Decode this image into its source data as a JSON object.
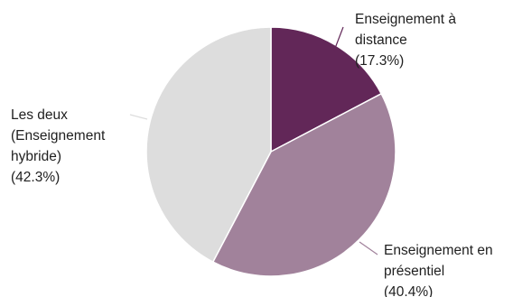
{
  "chart_data": {
    "type": "pie",
    "title": "",
    "slices": [
      {
        "label_lines": [
          "Enseignement à",
          "distance",
          "(17.3%)"
        ],
        "value": 17.3,
        "color": "#622758",
        "leader_color": "#622758"
      },
      {
        "label_lines": [
          "Enseignement en",
          "présentiel",
          "(40.4%)"
        ],
        "value": 40.4,
        "color": "#a1829b",
        "leader_color": "#a1829b"
      },
      {
        "label_lines": [
          "Les deux",
          "(Enseignement",
          "hybride)",
          "(42.3%)"
        ],
        "value": 42.3,
        "color": "#dddddd",
        "leader_color": "#dddddd"
      }
    ],
    "start_angle": "12 o'clock",
    "direction": "clockwise",
    "legend": "none (labels beside slices)"
  }
}
